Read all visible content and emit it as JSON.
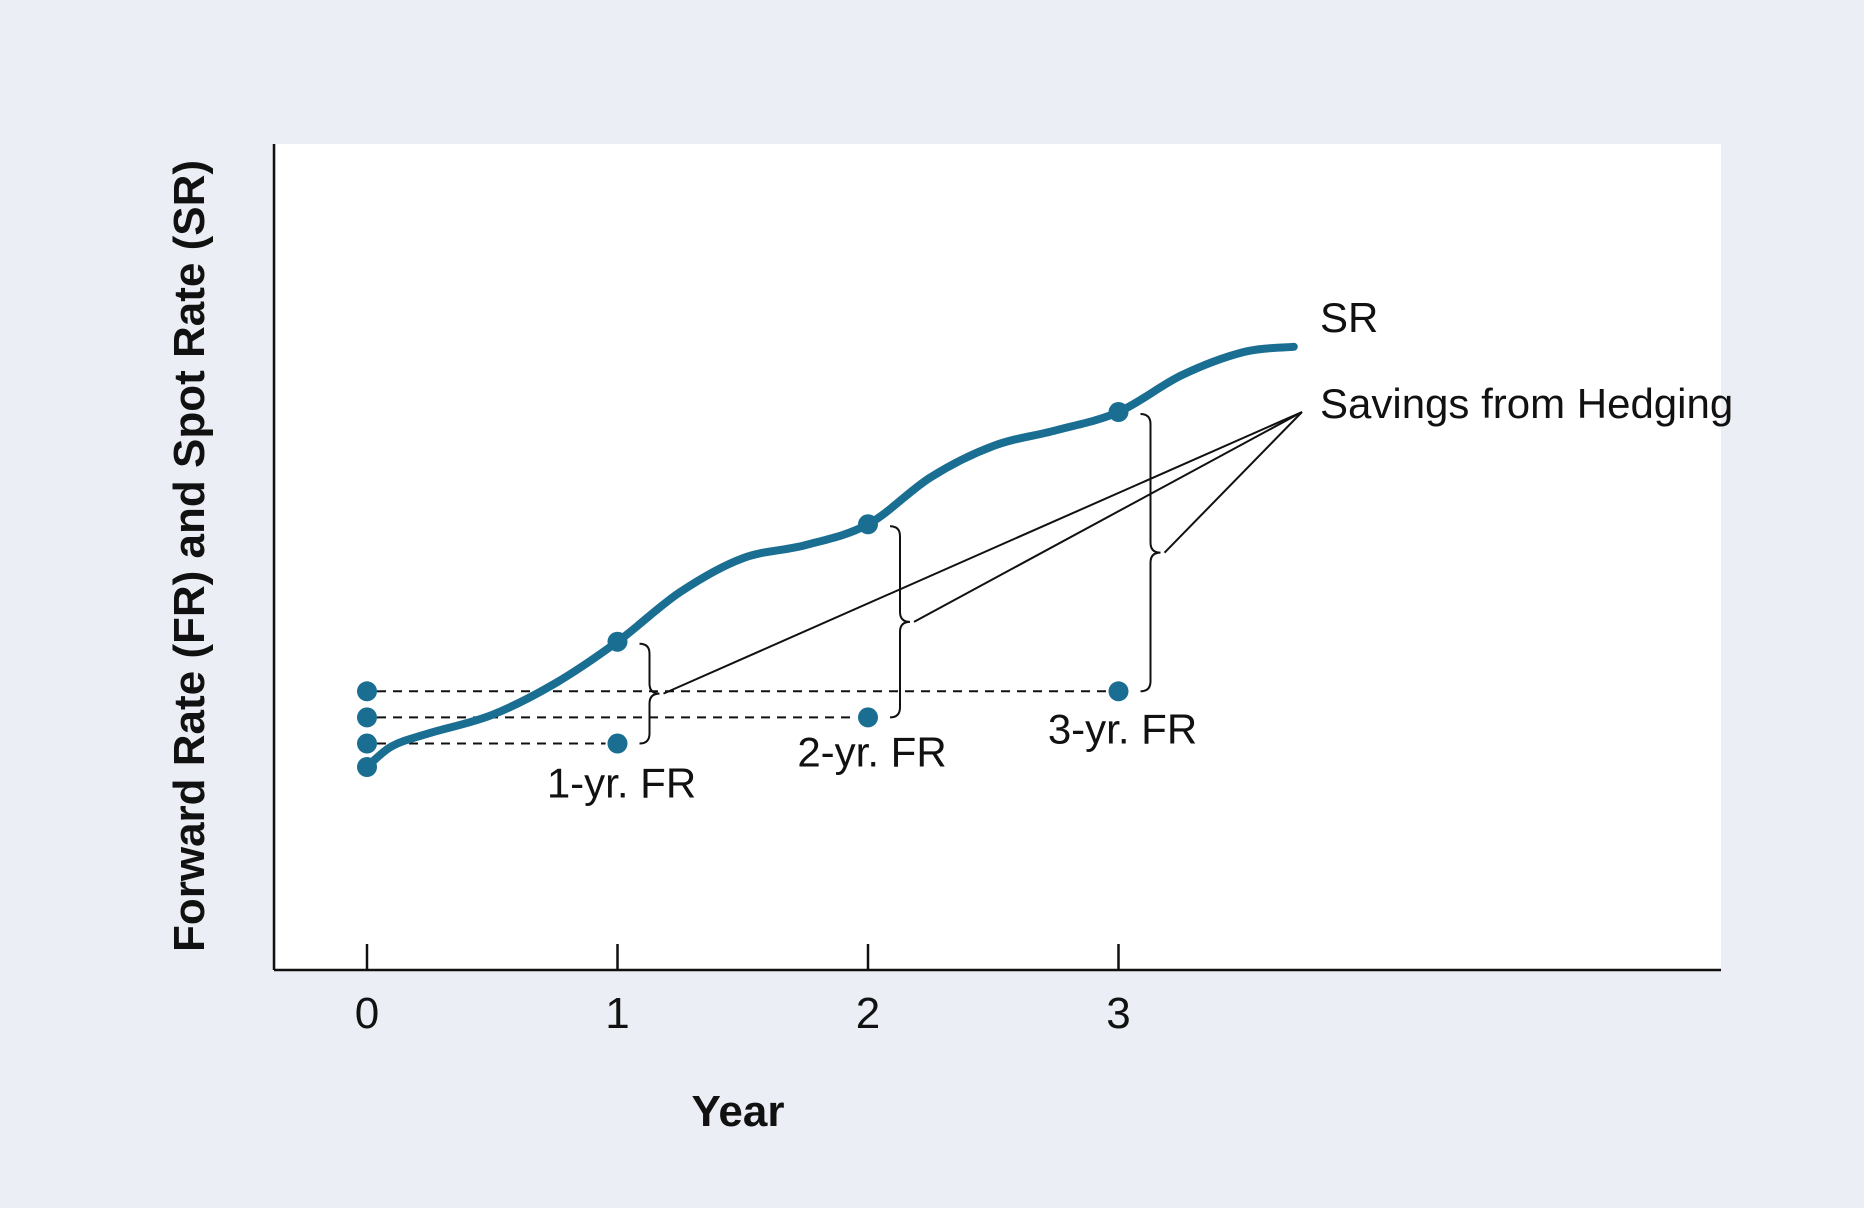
{
  "chart_data": {
    "type": "line",
    "title": "",
    "xlabel": "Year",
    "ylabel": "Forward Rate (FR) and Spot Rate (SR)",
    "x_ticks": [
      "0",
      "1",
      "2",
      "3"
    ],
    "xlim": [
      -0.37,
      5.4
    ],
    "grid": false,
    "series": [
      {
        "name": "SR",
        "x": [
          0,
          0.1,
          0.25,
          0.5,
          0.75,
          1,
          1.25,
          1.5,
          1.75,
          2,
          2.25,
          2.5,
          2.75,
          3,
          3.25,
          3.5,
          3.7
        ],
        "y": [
          0.0,
          0.08,
          0.13,
          0.2,
          0.32,
          0.48,
          0.67,
          0.8,
          0.85,
          0.93,
          1.11,
          1.23,
          1.29,
          1.36,
          1.5,
          1.59,
          1.61
        ],
        "label_end": "SR",
        "color": "#1a6e92"
      }
    ],
    "forward_rates": [
      {
        "label": "1-yr.  FR",
        "year": 1,
        "y": 0.09
      },
      {
        "label": "2-yr.  FR",
        "year": 2,
        "y": 0.19
      },
      {
        "label": "3-yr.  FR",
        "year": 3,
        "y": 0.29
      }
    ],
    "sr_markers_x": [
      1,
      2,
      3
    ],
    "annotation": "Savings from Hedging",
    "colors": {
      "line": "#1a6e92",
      "outer_background": "#ebeef5",
      "plot_background": "#ffffff",
      "ink": "#111111"
    }
  }
}
